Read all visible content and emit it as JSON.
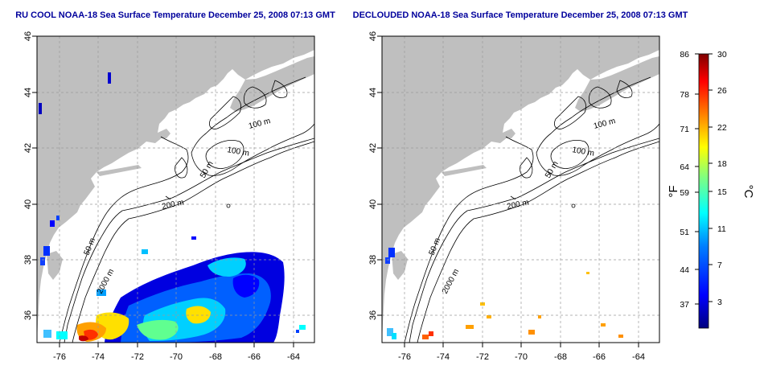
{
  "maps": [
    {
      "id": "left",
      "title": "RU COOL NOAA-18 Sea Surface Temperature December 25, 2008 07:13 GMT",
      "lat_ticks": [
        "46",
        "44",
        "42",
        "40",
        "38",
        "36"
      ],
      "lon_ticks": [
        "-76",
        "-74",
        "-72",
        "-70",
        "-68",
        "-66",
        "-64"
      ],
      "contour_labels": [
        "100 m",
        "100 m",
        "50 m",
        "200 m",
        "50 m",
        "2000 m"
      ],
      "coverage": "patchy cloud-masked SST in lower half"
    },
    {
      "id": "right",
      "title": "DECLOUDED NOAA-18 Sea Surface Temperature December 25, 2008 07:13 GMT",
      "lat_ticks": [
        "46",
        "44",
        "42",
        "40",
        "38",
        "36"
      ],
      "lon_ticks": [
        "-76",
        "-74",
        "-72",
        "-70",
        "-68",
        "-66",
        "-64"
      ],
      "contour_labels": [
        "100 m",
        "100 m",
        "50 m",
        "200 m",
        "50 m",
        "2000 m"
      ],
      "coverage": "sparse declouded SST pixels"
    }
  ],
  "colorbar": {
    "fahrenheit_label": "°F",
    "celsius_label": "°C",
    "fahrenheit_ticks": [
      "86",
      "78",
      "71",
      "64",
      "59",
      "51",
      "44",
      "37"
    ],
    "celsius_ticks": [
      "30",
      "26",
      "22",
      "18",
      "15",
      "11",
      "7",
      "3"
    ],
    "colors": [
      "#00007f",
      "#0000ff",
      "#0080ff",
      "#00ffff",
      "#80ff80",
      "#ffff00",
      "#ff8000",
      "#ff0000",
      "#7f0000"
    ],
    "range_celsius": [
      0,
      30
    ]
  },
  "map_colors": {
    "land": "#bfbfbf",
    "ocean": "#ffffff",
    "grid": "#9a9a9a",
    "contour": "#000000"
  }
}
